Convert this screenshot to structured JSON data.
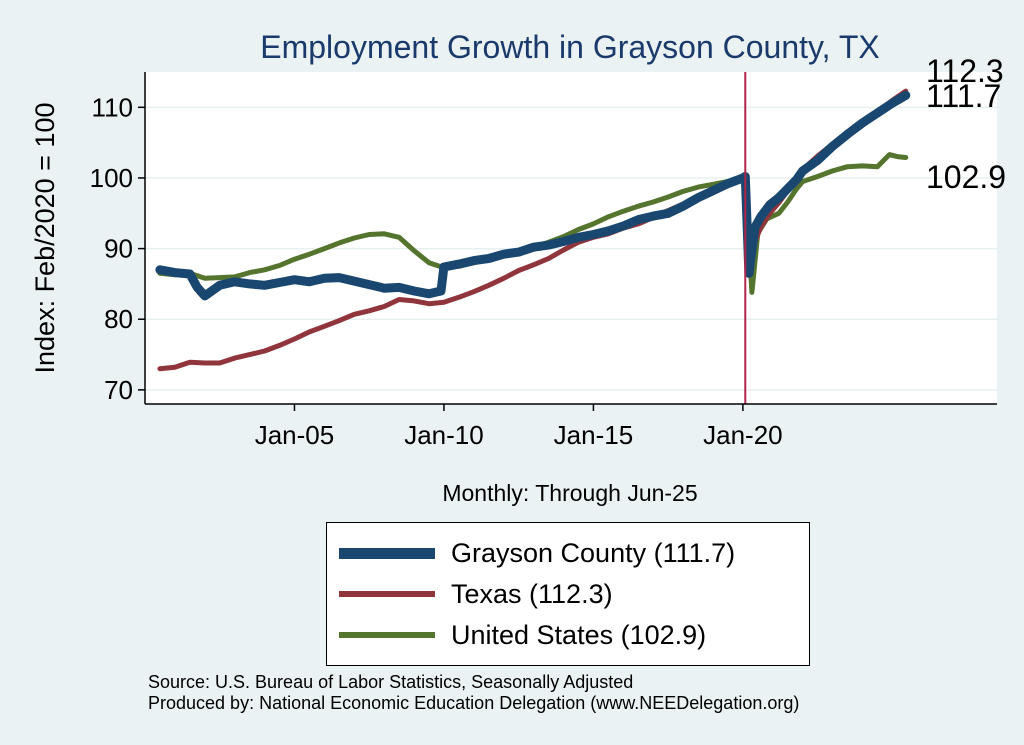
{
  "chart_data": {
    "type": "line",
    "title": "Employment Growth in Grayson  County, TX",
    "ylabel": "Index: Feb/2020 = 100",
    "xcaption": "Monthly: Through Jun-25",
    "ylim": [
      68,
      115
    ],
    "xlim": [
      2000.0,
      2028.5
    ],
    "yticks": [
      70,
      80,
      90,
      100,
      110
    ],
    "xticks": [
      {
        "value": 2005,
        "label": "Jan-05"
      },
      {
        "value": 2010,
        "label": "Jan-10"
      },
      {
        "value": 2015,
        "label": "Jan-15"
      },
      {
        "value": 2020,
        "label": "Jan-20"
      }
    ],
    "vline": 2020.08,
    "series": [
      {
        "name": "Grayson  County",
        "legend": "Grayson  County (111.7)",
        "color": "#1a476f",
        "final_label": "111.7",
        "points": [
          [
            2000.5,
            87.0
          ],
          [
            2001,
            86.6
          ],
          [
            2001.5,
            86.4
          ],
          [
            2001.75,
            84.5
          ],
          [
            2002,
            83.3
          ],
          [
            2002.5,
            84.8
          ],
          [
            2003,
            85.3
          ],
          [
            2003.5,
            85.0
          ],
          [
            2004,
            84.8
          ],
          [
            2004.5,
            85.2
          ],
          [
            2005,
            85.6
          ],
          [
            2005.5,
            85.3
          ],
          [
            2006,
            85.8
          ],
          [
            2006.5,
            85.9
          ],
          [
            2007,
            85.4
          ],
          [
            2007.5,
            84.9
          ],
          [
            2008,
            84.4
          ],
          [
            2008.5,
            84.5
          ],
          [
            2009,
            84.0
          ],
          [
            2009.5,
            83.6
          ],
          [
            2009.9,
            84.0
          ],
          [
            2010.0,
            87.4
          ],
          [
            2010.5,
            87.8
          ],
          [
            2011,
            88.3
          ],
          [
            2011.5,
            88.6
          ],
          [
            2012,
            89.2
          ],
          [
            2012.5,
            89.5
          ],
          [
            2013,
            90.2
          ],
          [
            2013.5,
            90.5
          ],
          [
            2014,
            91.0
          ],
          [
            2014.5,
            91.6
          ],
          [
            2015,
            92.0
          ],
          [
            2015.5,
            92.5
          ],
          [
            2016,
            93.2
          ],
          [
            2016.5,
            94.1
          ],
          [
            2017,
            94.6
          ],
          [
            2017.5,
            95.0
          ],
          [
            2018,
            96.0
          ],
          [
            2018.5,
            97.2
          ],
          [
            2019,
            98.2
          ],
          [
            2019.5,
            99.2
          ],
          [
            2020.0,
            100.0
          ],
          [
            2020.08,
            100.2
          ],
          [
            2020.2,
            86.5
          ],
          [
            2020.4,
            93.0
          ],
          [
            2020.6,
            94.5
          ],
          [
            2020.9,
            96.2
          ],
          [
            2021.2,
            97.2
          ],
          [
            2021.5,
            98.5
          ],
          [
            2021.8,
            99.8
          ],
          [
            2022,
            101.0
          ],
          [
            2022.5,
            102.5
          ],
          [
            2023,
            104.5
          ],
          [
            2023.5,
            106.2
          ],
          [
            2024,
            107.8
          ],
          [
            2024.5,
            109.2
          ],
          [
            2025,
            110.6
          ],
          [
            2025.45,
            111.7
          ]
        ]
      },
      {
        "name": "Texas",
        "legend": "Texas (112.3)",
        "color": "#90353b",
        "final_label": "112.3",
        "points": [
          [
            2000.5,
            73.0
          ],
          [
            2001,
            73.2
          ],
          [
            2001.5,
            73.9
          ],
          [
            2002,
            73.8
          ],
          [
            2002.5,
            73.8
          ],
          [
            2003,
            74.5
          ],
          [
            2003.5,
            75.0
          ],
          [
            2004,
            75.5
          ],
          [
            2004.5,
            76.3
          ],
          [
            2005,
            77.2
          ],
          [
            2005.5,
            78.2
          ],
          [
            2006,
            79.0
          ],
          [
            2006.5,
            79.8
          ],
          [
            2007,
            80.7
          ],
          [
            2007.5,
            81.2
          ],
          [
            2008,
            81.8
          ],
          [
            2008.5,
            82.8
          ],
          [
            2009,
            82.6
          ],
          [
            2009.5,
            82.2
          ],
          [
            2010,
            82.4
          ],
          [
            2010.5,
            83.1
          ],
          [
            2011,
            83.9
          ],
          [
            2011.5,
            84.8
          ],
          [
            2012,
            85.8
          ],
          [
            2012.5,
            86.9
          ],
          [
            2013,
            87.7
          ],
          [
            2013.5,
            88.6
          ],
          [
            2014,
            89.8
          ],
          [
            2014.5,
            90.9
          ],
          [
            2015,
            91.6
          ],
          [
            2015.5,
            92.1
          ],
          [
            2016,
            92.9
          ],
          [
            2016.5,
            93.5
          ],
          [
            2017,
            94.4
          ],
          [
            2017.5,
            95.4
          ],
          [
            2018,
            96.3
          ],
          [
            2018.5,
            97.4
          ],
          [
            2019,
            98.4
          ],
          [
            2019.5,
            99.2
          ],
          [
            2020.0,
            99.9
          ],
          [
            2020.08,
            100.0
          ],
          [
            2020.2,
            86.2
          ],
          [
            2020.4,
            91.0
          ],
          [
            2020.6,
            93.0
          ],
          [
            2020.9,
            95.0
          ],
          [
            2021.2,
            96.5
          ],
          [
            2021.5,
            98.2
          ],
          [
            2021.8,
            99.8
          ],
          [
            2022,
            101.2
          ],
          [
            2022.5,
            103.1
          ],
          [
            2023,
            104.8
          ],
          [
            2023.5,
            106.4
          ],
          [
            2024,
            108.0
          ],
          [
            2024.5,
            109.4
          ],
          [
            2025,
            111.0
          ],
          [
            2025.45,
            112.3
          ]
        ]
      },
      {
        "name": "United States",
        "legend": "United States (102.9)",
        "color": "#55752f",
        "final_label": "102.9",
        "points": [
          [
            2000.5,
            86.5
          ],
          [
            2001,
            86.3
          ],
          [
            2001.5,
            86.5
          ],
          [
            2002,
            85.8
          ],
          [
            2002.5,
            85.9
          ],
          [
            2003,
            86.0
          ],
          [
            2003.5,
            86.6
          ],
          [
            2004,
            87.0
          ],
          [
            2004.5,
            87.6
          ],
          [
            2005,
            88.5
          ],
          [
            2005.5,
            89.2
          ],
          [
            2006,
            90.0
          ],
          [
            2006.5,
            90.8
          ],
          [
            2007,
            91.5
          ],
          [
            2007.5,
            92.0
          ],
          [
            2008,
            92.1
          ],
          [
            2008.5,
            91.6
          ],
          [
            2009,
            89.7
          ],
          [
            2009.5,
            88.0
          ],
          [
            2010,
            87.3
          ],
          [
            2010.5,
            87.5
          ],
          [
            2011,
            88.0
          ],
          [
            2011.5,
            88.5
          ],
          [
            2012,
            89.1
          ],
          [
            2012.5,
            89.7
          ],
          [
            2013,
            90.2
          ],
          [
            2013.5,
            90.9
          ],
          [
            2014,
            91.7
          ],
          [
            2014.5,
            92.7
          ],
          [
            2015,
            93.5
          ],
          [
            2015.5,
            94.5
          ],
          [
            2016,
            95.3
          ],
          [
            2016.5,
            96.0
          ],
          [
            2017,
            96.6
          ],
          [
            2017.5,
            97.3
          ],
          [
            2018,
            98.1
          ],
          [
            2018.5,
            98.7
          ],
          [
            2019,
            99.1
          ],
          [
            2019.5,
            99.5
          ],
          [
            2020.0,
            100.0
          ],
          [
            2020.08,
            100.0
          ],
          [
            2020.3,
            83.8
          ],
          [
            2020.5,
            92.2
          ],
          [
            2020.8,
            94.2
          ],
          [
            2021.2,
            95.0
          ],
          [
            2021.5,
            96.6
          ],
          [
            2021.8,
            98.5
          ],
          [
            2022,
            99.5
          ],
          [
            2022.5,
            100.2
          ],
          [
            2023,
            101.0
          ],
          [
            2023.5,
            101.6
          ],
          [
            2024,
            101.7
          ],
          [
            2024.5,
            101.6
          ],
          [
            2024.9,
            103.3
          ],
          [
            2025.2,
            103.0
          ],
          [
            2025.45,
            102.9
          ]
        ]
      }
    ]
  },
  "source": {
    "line1": "Source: U.S. Bureau of Labor Statistics, Seasonally Adjusted",
    "line2": "Produced by: National Economic Education Delegation (www.NEEDelegation.org)"
  }
}
